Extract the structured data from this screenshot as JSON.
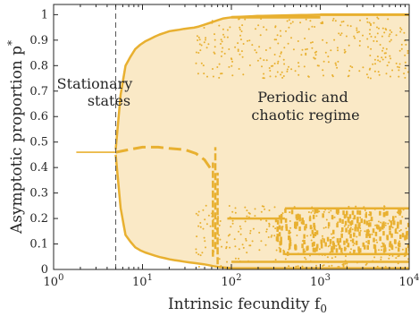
{
  "chart_data": {
    "type": "scatter",
    "title": "",
    "xlabel": "Intrinsic fecundity f",
    "xlabel_subscript": "0",
    "ylabel": "Asymptotic proportion p",
    "ylabel_superscript": "*",
    "x_scale": "log",
    "xlim": [
      1,
      10000
    ],
    "ylim": [
      0,
      1.04
    ],
    "x_ticks": [
      1,
      10,
      100,
      1000,
      10000
    ],
    "x_tick_labels": [
      {
        "base": "10",
        "exp": "0"
      },
      {
        "base": "10",
        "exp": "1"
      },
      {
        "base": "10",
        "exp": "2"
      },
      {
        "base": "10",
        "exp": "3"
      },
      {
        "base": "10",
        "exp": "4"
      }
    ],
    "y_ticks": [
      0,
      0.1,
      0.2,
      0.3,
      0.4,
      0.5,
      0.6,
      0.7,
      0.8,
      0.9,
      1
    ],
    "y_tick_labels": [
      "0",
      "0.1",
      "0.2",
      "0.3",
      "0.4",
      "0.5",
      "0.6",
      "0.7",
      "0.8",
      "0.9",
      "1"
    ],
    "grid": false,
    "color": "#E8B030",
    "fill_color": "#FAE9C6",
    "bifurcation_threshold_x": 5,
    "stationary_branch": {
      "x": [
        1.8,
        5
      ],
      "y": [
        0.46,
        0.46
      ]
    },
    "envelope_upper": {
      "x": [
        5,
        6,
        8,
        10,
        15,
        20,
        25,
        30,
        40,
        60,
        80,
        100,
        200,
        1000,
        10000
      ],
      "y": [
        0.47,
        0.78,
        0.86,
        0.89,
        0.92,
        0.935,
        0.94,
        0.945,
        0.95,
        0.97,
        0.985,
        0.99,
        0.995,
        1.0,
        1.0
      ]
    },
    "envelope_lower": {
      "x": [
        5,
        6,
        8,
        10,
        15,
        20,
        30,
        50,
        70,
        100,
        1000,
        10000
      ],
      "y": [
        0.45,
        0.15,
        0.09,
        0.07,
        0.05,
        0.04,
        0.03,
        0.02,
        0.01,
        0.005,
        0.005,
        0.005
      ]
    },
    "middle_branch": {
      "x": [
        5,
        7,
        10,
        15,
        20,
        30,
        40,
        50,
        60
      ],
      "y": [
        0.46,
        0.47,
        0.48,
        0.48,
        0.475,
        0.47,
        0.455,
        0.43,
        0.39
      ]
    },
    "upper_bands": [
      {
        "x": [
          100,
          1000
        ],
        "y": 0.99
      },
      {
        "x": [
          1000,
          10000
        ],
        "y": 1.0
      }
    ],
    "lower_bands": [
      {
        "x": [
          90,
          400
        ],
        "y": 0.2
      },
      {
        "x": [
          400,
          10000
        ],
        "y": 0.24
      },
      {
        "x": [
          400,
          10000
        ],
        "y": 0.06
      },
      {
        "x": [
          100,
          10000
        ],
        "y": 0.03
      }
    ],
    "annotations": [
      {
        "lines": [
          "Stationary",
          "states"
        ]
      },
      {
        "lines": [
          "Periodic and",
          "chaotic regime"
        ]
      }
    ]
  }
}
